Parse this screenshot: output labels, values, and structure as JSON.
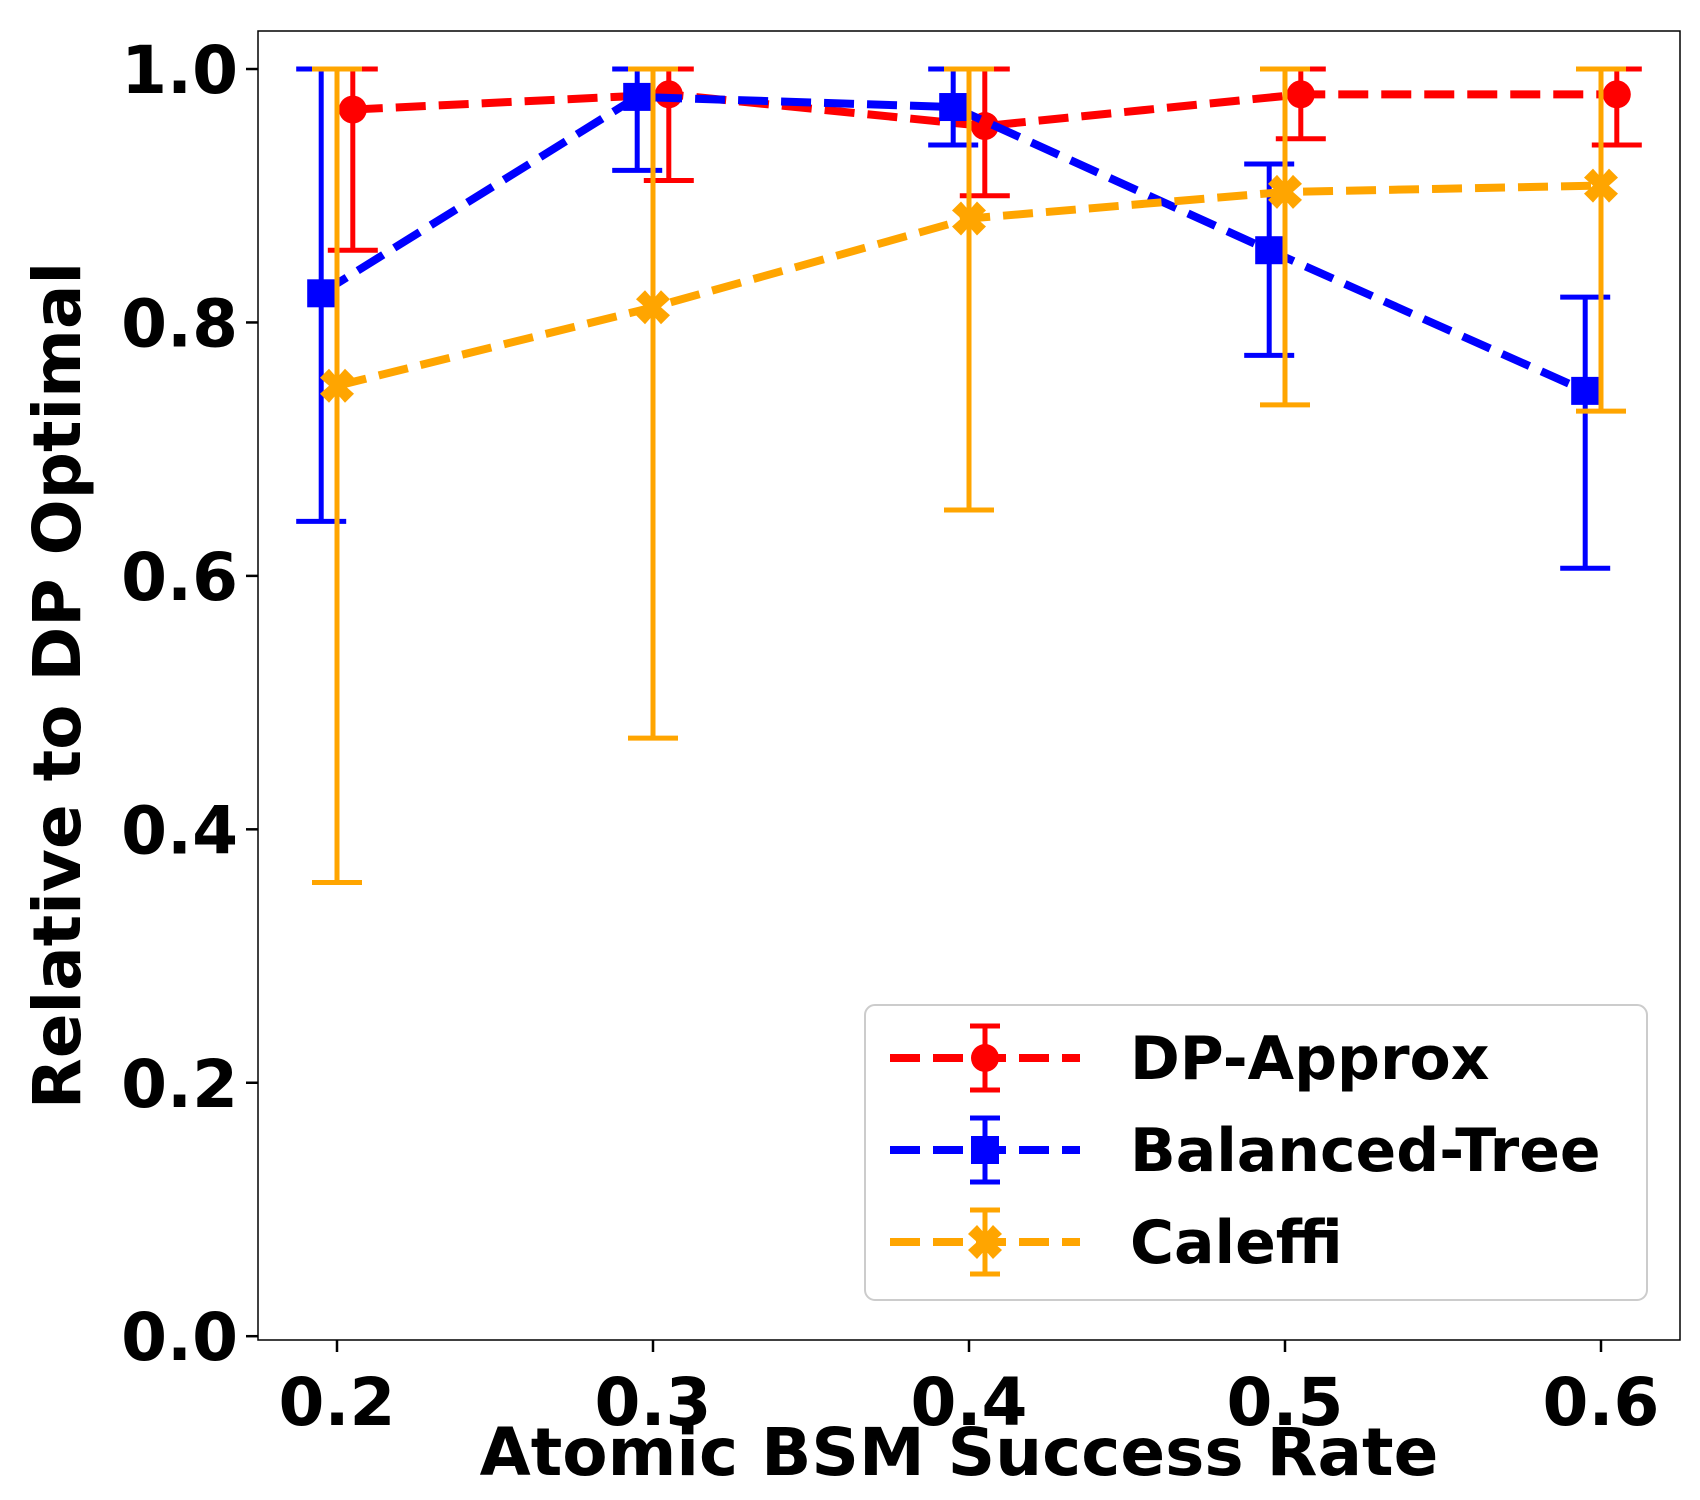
{
  "chart_data": {
    "type": "line",
    "title": "",
    "xlabel": "Atomic BSM Success Rate",
    "ylabel": "Relative to DP Optimal",
    "xlim": [
      0.175,
      0.625
    ],
    "ylim": [
      -0.003,
      1.03
    ],
    "xticks": [
      0.2,
      0.3,
      0.4,
      0.5,
      0.6
    ],
    "xtick_labels": [
      "0.2",
      "0.3",
      "0.4",
      "0.5",
      "0.6"
    ],
    "yticks": [
      0.0,
      0.2,
      0.4,
      0.6,
      0.8,
      1.0
    ],
    "ytick_labels": [
      "0.0",
      "0.2",
      "0.4",
      "0.6",
      "0.8",
      "1.0"
    ],
    "grid": false,
    "legend_position": "bottom-right",
    "series": [
      {
        "name": "DP-Approx",
        "color": "#ff0000",
        "marker": "circle",
        "linestyle": "dashed",
        "x": [
          0.205,
          0.305,
          0.405,
          0.505,
          0.605
        ],
        "values": [
          0.968,
          0.98,
          0.955,
          0.98,
          0.98
        ],
        "err_low": [
          0.857,
          0.912,
          0.9,
          0.945,
          0.94
        ],
        "err_high": [
          1.0,
          1.0,
          1.0,
          1.0,
          1.0
        ]
      },
      {
        "name": "Balanced-Tree",
        "color": "#0000ff",
        "marker": "square",
        "linestyle": "dashed",
        "x": [
          0.195,
          0.295,
          0.395,
          0.495,
          0.595
        ],
        "values": [
          0.823,
          0.978,
          0.97,
          0.857,
          0.746
        ],
        "err_low": [
          0.643,
          0.92,
          0.94,
          0.774,
          0.606
        ],
        "err_high": [
          1.0,
          1.0,
          1.0,
          0.925,
          0.82
        ]
      },
      {
        "name": "Caleffi",
        "color": "#ffa500",
        "marker": "x",
        "linestyle": "dashed",
        "x": [
          0.2,
          0.3,
          0.4,
          0.5,
          0.6
        ],
        "values": [
          0.75,
          0.812,
          0.882,
          0.903,
          0.908
        ],
        "err_low": [
          0.358,
          0.472,
          0.652,
          0.735,
          0.73
        ],
        "err_high": [
          1.0,
          1.0,
          1.0,
          1.0,
          1.0
        ]
      }
    ]
  }
}
